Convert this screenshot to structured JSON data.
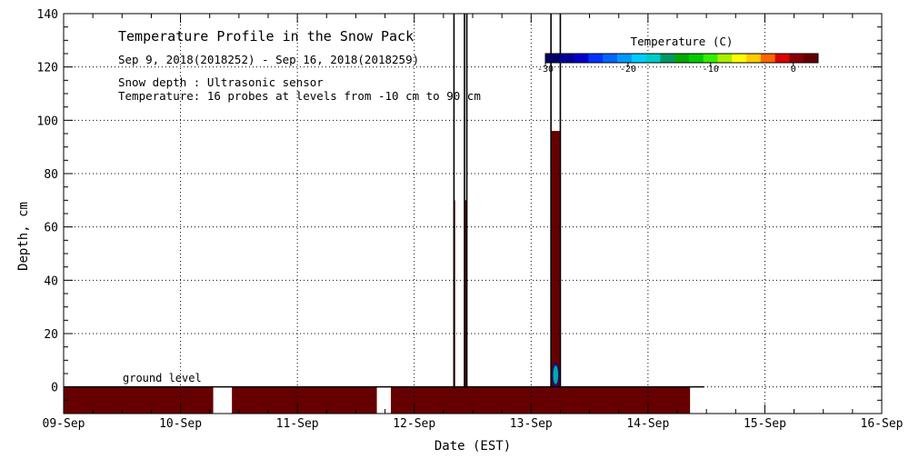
{
  "chart_data": {
    "type": "heatmap",
    "title": "Temperature Profile in the Snow Pack",
    "subtitle": "Sep  9, 2018(2018252) - Sep 16, 2018(2018259)",
    "annotations": [
      "Snow depth : Ultrasonic sensor",
      "Temperature: 16 probes at levels from -10 cm to 90 cm"
    ],
    "ground_label": "ground level",
    "xlabel": "Date (EST)",
    "ylabel": "Depth, cm",
    "x_ticks": [
      "09-Sep",
      "10-Sep",
      "11-Sep",
      "12-Sep",
      "13-Sep",
      "14-Sep",
      "15-Sep",
      "16-Sep"
    ],
    "xlim": [
      0,
      7
    ],
    "y_ticks": [
      0,
      20,
      40,
      60,
      80,
      100,
      120,
      140
    ],
    "ylim": [
      -10,
      140
    ],
    "grid": true,
    "legend": {
      "title": "Temperature (C)",
      "tick_labels": [
        "-30",
        "-20",
        "-10",
        "0"
      ],
      "tick_values": [
        -30,
        -20,
        -10,
        0
      ],
      "range": [
        -30,
        3
      ],
      "colors": [
        "#000066",
        "#000099",
        "#0000cc",
        "#0033ff",
        "#0066ff",
        "#0099ff",
        "#00ccff",
        "#00cccc",
        "#009966",
        "#00aa00",
        "#00cc00",
        "#33ee00",
        "#aaee00",
        "#ffff00",
        "#ffcc00",
        "#ff6600",
        "#dd0000",
        "#880000",
        "#660000"
      ],
      "placement": "top-right"
    },
    "ground_blocks": [
      {
        "x_start": 0.0,
        "x_end": 1.28,
        "y_bottom": -10,
        "y_top": 0,
        "color": "#660000"
      },
      {
        "x_start": 1.44,
        "x_end": 2.68,
        "y_bottom": -10,
        "y_top": 0,
        "color": "#660000"
      },
      {
        "x_start": 2.8,
        "x_end": 5.36,
        "y_bottom": -10,
        "y_top": 0,
        "color": "#660000"
      }
    ],
    "ground_line": {
      "x_start": 0.0,
      "x_end": 5.48,
      "y": 0
    },
    "snow_depth_spikes": [
      {
        "x": 3.34,
        "y_top": 140
      },
      {
        "x": 3.43,
        "y_top": 140
      },
      {
        "x": 3.45,
        "y_top": 140
      },
      {
        "x": 4.17,
        "y_top": 140
      },
      {
        "x": 4.25,
        "y_top": 140
      }
    ],
    "temperature_columns": [
      {
        "x_start": 3.335,
        "x_end": 3.35,
        "y_top": 70,
        "color": "#660000"
      },
      {
        "x_start": 3.43,
        "x_end": 3.445,
        "y_top": 70,
        "color": "#660000"
      },
      {
        "x_start": 4.175,
        "x_end": 4.245,
        "y_top": 96,
        "color": "#660000"
      }
    ],
    "cold_patch": {
      "x": 4.21,
      "y_center": 4.5,
      "x_halfwidth": 0.03,
      "y_halfheight": 4.5,
      "colors": [
        "#0000aa",
        "#003399",
        "#00aaaa"
      ]
    }
  }
}
